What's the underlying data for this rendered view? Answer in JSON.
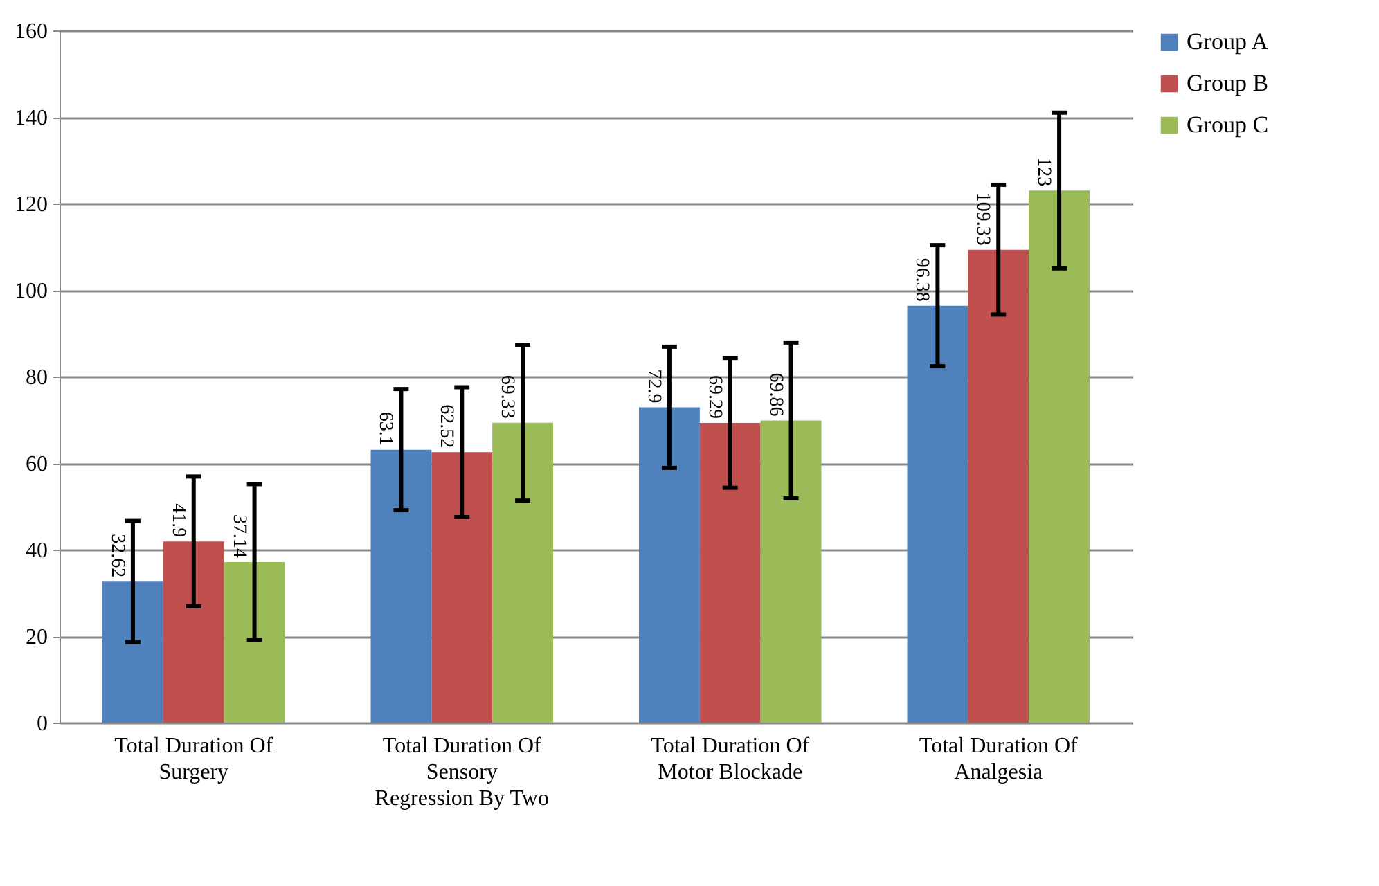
{
  "chart_data": {
    "type": "bar",
    "categories": [
      "Total Duration Of Surgery",
      "Total Duration Of Sensory Regression By Two",
      "Total Duration Of Motor Blockade",
      "Total Duration Of Analgesia"
    ],
    "series": [
      {
        "name": "Group A",
        "color": "#4f81bd",
        "values": [
          32.62,
          63.1,
          72.9,
          96.38
        ],
        "errors": [
          14,
          14,
          14,
          14
        ]
      },
      {
        "name": "Group B",
        "color": "#c0504d",
        "values": [
          41.9,
          62.52,
          69.29,
          109.33
        ],
        "errors": [
          15,
          15,
          15,
          15
        ]
      },
      {
        "name": "Group C",
        "color": "#9bbb59",
        "values": [
          37.14,
          69.33,
          69.86,
          123
        ],
        "errors": [
          18,
          18,
          18,
          18
        ]
      }
    ],
    "ylim": [
      0,
      160
    ],
    "yticks": [
      0,
      20,
      40,
      60,
      80,
      100,
      120,
      140,
      160
    ],
    "grid": "y",
    "legend": "right",
    "data_labels": true
  }
}
